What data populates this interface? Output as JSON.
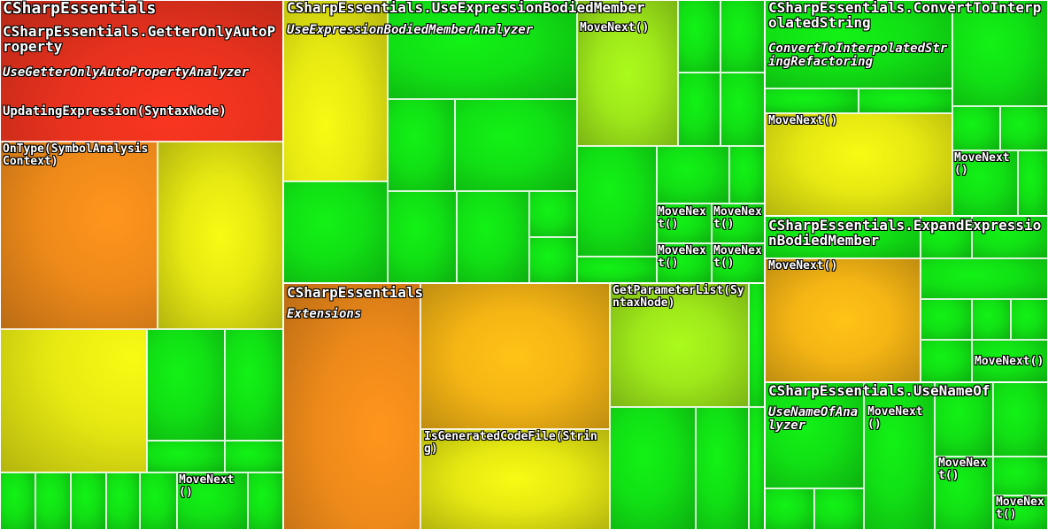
{
  "chart_data": {
    "type": "heatmap",
    "colors": {
      "red": "#e8321e",
      "orange": "#ee8a1a",
      "amber": "#f5b514",
      "yellow": "#e6e812",
      "lime": "#9ee81a",
      "green": "#11e014"
    },
    "labels": {
      "ns_root": "CSharpEssentials",
      "getter_ns": "CSharpEssentials.GetterOnlyAutoProperty",
      "getter_class": "UseGetterOnlyAutoPropertyAnalyzer",
      "getter_m1": "UpdatingExpression(SyntaxNode)",
      "getter_m2": "OnType(SymbolAnalysisContext)",
      "getter_m3": "MoveNext()",
      "ueb_ns": "CSharpEssentials.UseExpressionBodiedMember",
      "ueb_class": "UseExpressionBodiedMemberAnalyzer",
      "ueb_m1": "MoveNext()",
      "ueb_m2": "MoveNext()",
      "ueb_m3": "MoveNext()",
      "ueb_m4": "MoveNext()",
      "ueb_m5": "MoveNext()",
      "ext_ns": "CSharpEssentials",
      "ext_class": "Extensions",
      "ext_m1": "GetParameterList(SyntaxNode)",
      "ext_m2": "IsGeneratedCodeFile(String)",
      "cti_ns": "CSharpEssentials.ConvertToInterpolatedString",
      "cti_class": "ConvertToInterpolatedStringRefactoring",
      "cti_m1": "MoveNext()",
      "cti_m2": "MoveNext()",
      "eeb_ns": "CSharpEssentials.ExpandExpressionBodiedMember",
      "eeb_m1": "MoveNext()",
      "eeb_m2": "MoveNext()",
      "uno_ns": "CSharpEssentials.UseNameOf",
      "uno_class": "UseNameOfAnalyzer",
      "uno_m1": "MoveNext()",
      "uno_m2": "MoveNext()",
      "uno_m3": "MoveNext()"
    }
  }
}
